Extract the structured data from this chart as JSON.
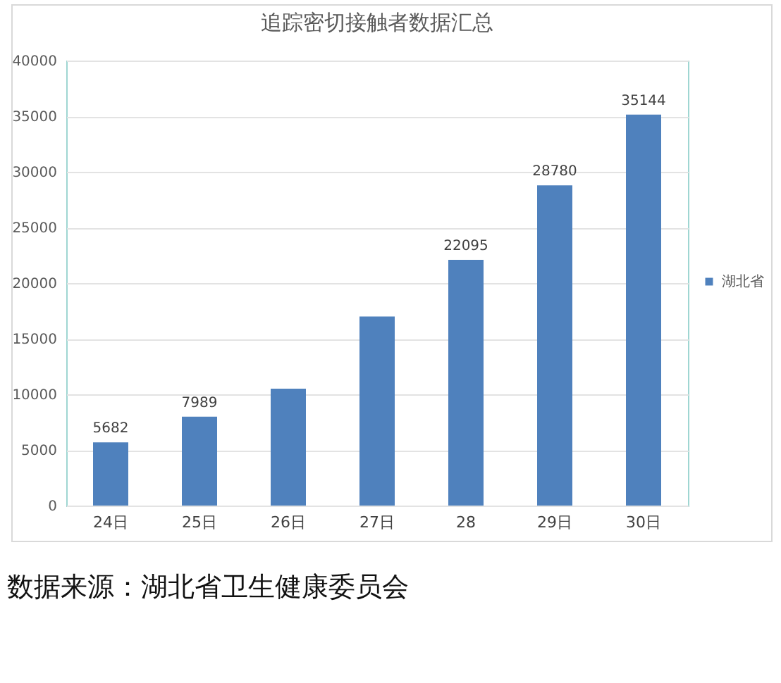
{
  "chart_data": {
    "type": "bar",
    "title": "追踪密切接触者数据汇总",
    "categories": [
      "24日",
      "25日",
      "26日",
      "27日",
      "28",
      "29日",
      "30日"
    ],
    "series": [
      {
        "name": "湖北省",
        "color": "#4f81bd",
        "values": [
          5682,
          7989,
          10500,
          17000,
          22095,
          28780,
          35144
        ],
        "value_labels": [
          "5682",
          "7989",
          null,
          null,
          "22095",
          "28780",
          "35144"
        ]
      }
    ],
    "ylim": [
      0,
      40000
    ],
    "yticks": [
      0,
      5000,
      10000,
      15000,
      20000,
      25000,
      30000,
      35000,
      40000
    ],
    "grid": "y",
    "legend": "right",
    "annotations": [
      "数据来源：湖北省卫生健康委员会"
    ]
  }
}
